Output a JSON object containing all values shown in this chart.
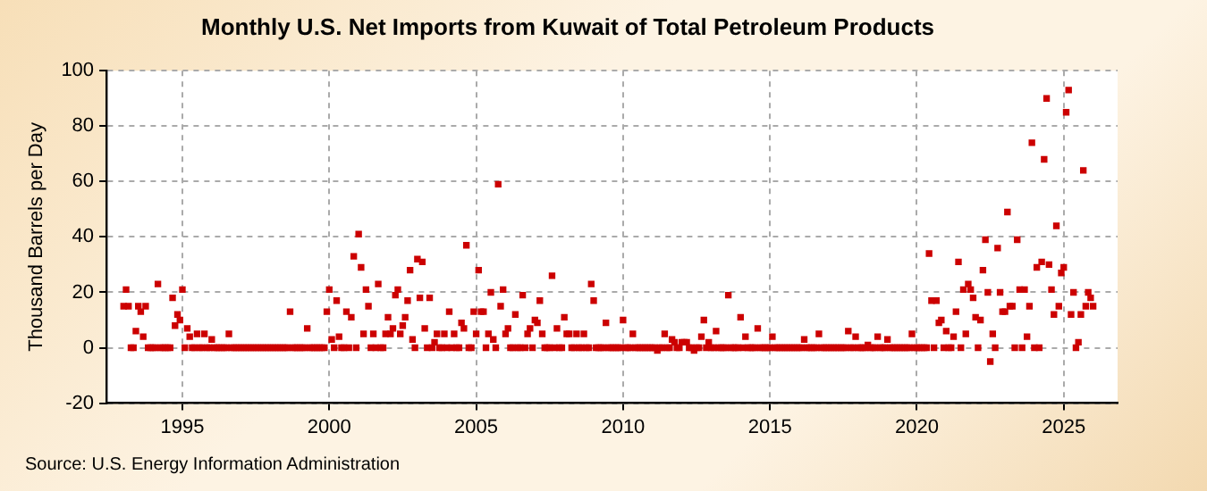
{
  "chart_data": {
    "type": "scatter",
    "title": "Monthly U.S. Net Imports from Kuwait of Total Petroleum Products",
    "ylabel": "Thousand Barrels per Day",
    "annotations": [
      "Source: U.S. Energy Information Administration"
    ],
    "xlim": [
      "1992-06",
      "2026-11"
    ],
    "xticks": [
      "1995",
      "2000",
      "2005",
      "2010",
      "2015",
      "2020",
      "2025"
    ],
    "ylim": [
      -20,
      100
    ],
    "yticks": [
      -20,
      0,
      20,
      40,
      60,
      80,
      100
    ],
    "grid": true,
    "legend": false,
    "marker": "square",
    "x": [
      "1993-01",
      "1993-02",
      "1993-03",
      "1993-04",
      "1993-05",
      "1993-06",
      "1993-07",
      "1993-08",
      "1993-09",
      "1993-10",
      "1993-11",
      "1993-12",
      "1994-01",
      "1994-02",
      "1994-03",
      "1994-04",
      "1994-05",
      "1994-06",
      "1994-07",
      "1994-08",
      "1994-09",
      "1994-10",
      "1994-11",
      "1994-12",
      "1995-01",
      "1995-02",
      "1995-03",
      "1995-04",
      "1995-05",
      "1995-06",
      "1995-07",
      "1995-08",
      "1995-09",
      "1995-10",
      "1995-11",
      "1995-12",
      "1996-01",
      "1996-02",
      "1996-03",
      "1996-04",
      "1996-05",
      "1996-06",
      "1996-07",
      "1996-08",
      "1996-09",
      "1996-10",
      "1996-11",
      "1996-12",
      "1997-01",
      "1997-02",
      "1997-03",
      "1997-04",
      "1997-05",
      "1997-06",
      "1997-07",
      "1997-08",
      "1997-09",
      "1997-10",
      "1997-11",
      "1997-12",
      "1998-01",
      "1998-02",
      "1998-03",
      "1998-04",
      "1998-05",
      "1998-06",
      "1998-07",
      "1998-08",
      "1998-09",
      "1998-10",
      "1998-11",
      "1998-12",
      "1999-01",
      "1999-02",
      "1999-03",
      "1999-04",
      "1999-05",
      "1999-06",
      "1999-07",
      "1999-08",
      "1999-09",
      "1999-10",
      "1999-11",
      "1999-12",
      "2000-01",
      "2000-02",
      "2000-03",
      "2000-04",
      "2000-05",
      "2000-06",
      "2000-07",
      "2000-08",
      "2000-09",
      "2000-10",
      "2000-11",
      "2000-12",
      "2001-01",
      "2001-02",
      "2001-03",
      "2001-04",
      "2001-05",
      "2001-06",
      "2001-07",
      "2001-08",
      "2001-09",
      "2001-10",
      "2001-11",
      "2001-12",
      "2002-01",
      "2002-02",
      "2002-03",
      "2002-04",
      "2002-05",
      "2002-06",
      "2002-07",
      "2002-08",
      "2002-09",
      "2002-10",
      "2002-11",
      "2002-12",
      "2003-01",
      "2003-02",
      "2003-03",
      "2003-04",
      "2003-05",
      "2003-06",
      "2003-07",
      "2003-08",
      "2003-09",
      "2003-10",
      "2003-11",
      "2003-12",
      "2004-01",
      "2004-02",
      "2004-03",
      "2004-04",
      "2004-05",
      "2004-06",
      "2004-07",
      "2004-08",
      "2004-09",
      "2004-10",
      "2004-11",
      "2004-12",
      "2005-01",
      "2005-02",
      "2005-03",
      "2005-04",
      "2005-05",
      "2005-06",
      "2005-07",
      "2005-08",
      "2005-09",
      "2005-10",
      "2005-11",
      "2005-12",
      "2006-01",
      "2006-02",
      "2006-03",
      "2006-04",
      "2006-05",
      "2006-06",
      "2006-07",
      "2006-08",
      "2006-09",
      "2006-10",
      "2006-11",
      "2006-12",
      "2007-01",
      "2007-02",
      "2007-03",
      "2007-04",
      "2007-05",
      "2007-06",
      "2007-07",
      "2007-08",
      "2007-09",
      "2007-10",
      "2007-11",
      "2007-12",
      "2008-01",
      "2008-02",
      "2008-03",
      "2008-04",
      "2008-05",
      "2008-06",
      "2008-07",
      "2008-08",
      "2008-09",
      "2008-10",
      "2008-11",
      "2008-12",
      "2009-01",
      "2009-02",
      "2009-03",
      "2009-04",
      "2009-05",
      "2009-06",
      "2009-07",
      "2009-08",
      "2009-09",
      "2009-10",
      "2009-11",
      "2009-12",
      "2010-01",
      "2010-02",
      "2010-03",
      "2010-04",
      "2010-05",
      "2010-06",
      "2010-07",
      "2010-08",
      "2010-09",
      "2010-10",
      "2010-11",
      "2010-12",
      "2011-01",
      "2011-02",
      "2011-03",
      "2011-04",
      "2011-05",
      "2011-06",
      "2011-07",
      "2011-08",
      "2011-09",
      "2011-10",
      "2011-11",
      "2011-12",
      "2012-01",
      "2012-02",
      "2012-03",
      "2012-04",
      "2012-05",
      "2012-06",
      "2012-07",
      "2012-08",
      "2012-09",
      "2012-10",
      "2012-11",
      "2012-12",
      "2013-01",
      "2013-02",
      "2013-03",
      "2013-04",
      "2013-05",
      "2013-06",
      "2013-07",
      "2013-08",
      "2013-09",
      "2013-10",
      "2013-11",
      "2013-12",
      "2014-01",
      "2014-02",
      "2014-03",
      "2014-04",
      "2014-05",
      "2014-06",
      "2014-07",
      "2014-08",
      "2014-09",
      "2014-10",
      "2014-11",
      "2014-12",
      "2015-01",
      "2015-02",
      "2015-03",
      "2015-04",
      "2015-05",
      "2015-06",
      "2015-07",
      "2015-08",
      "2015-09",
      "2015-10",
      "2015-11",
      "2015-12",
      "2016-01",
      "2016-02",
      "2016-03",
      "2016-04",
      "2016-05",
      "2016-06",
      "2016-07",
      "2016-08",
      "2016-09",
      "2016-10",
      "2016-11",
      "2016-12",
      "2017-01",
      "2017-02",
      "2017-03",
      "2017-04",
      "2017-05",
      "2017-06",
      "2017-07",
      "2017-08",
      "2017-09",
      "2017-10",
      "2017-11",
      "2017-12",
      "2018-01",
      "2018-02",
      "2018-03",
      "2018-04",
      "2018-05",
      "2018-06",
      "2018-07",
      "2018-08",
      "2018-09",
      "2018-10",
      "2018-11",
      "2018-12",
      "2019-01",
      "2019-02",
      "2019-03",
      "2019-04",
      "2019-05",
      "2019-06",
      "2019-07",
      "2019-08",
      "2019-09",
      "2019-10",
      "2019-11",
      "2019-12",
      "2020-01",
      "2020-02",
      "2020-03",
      "2020-04",
      "2020-05",
      "2020-06",
      "2020-07",
      "2020-08",
      "2020-09",
      "2020-10",
      "2020-11",
      "2020-12",
      "2021-01",
      "2021-02",
      "2021-03",
      "2021-04",
      "2021-05",
      "2021-06",
      "2021-07",
      "2021-08",
      "2021-09",
      "2021-10",
      "2021-11",
      "2021-12",
      "2022-01",
      "2022-02",
      "2022-03",
      "2022-04",
      "2022-05",
      "2022-06",
      "2022-07",
      "2022-08",
      "2022-09",
      "2022-10",
      "2022-11",
      "2022-12",
      "2023-01",
      "2023-02",
      "2023-03",
      "2023-04",
      "2023-05",
      "2023-06",
      "2023-07",
      "2023-08",
      "2023-09",
      "2023-10",
      "2023-11",
      "2023-12",
      "2024-01",
      "2024-02",
      "2024-03",
      "2024-04",
      "2024-05",
      "2024-06",
      "2024-07",
      "2024-08",
      "2024-09",
      "2024-10",
      "2024-11",
      "2024-12",
      "2025-01",
      "2025-02",
      "2025-03",
      "2025-04",
      "2025-05",
      "2025-06",
      "2025-07",
      "2025-08",
      "2025-09",
      "2025-10",
      "2025-11",
      "2025-12",
      "2026-01"
    ],
    "series": [
      {
        "color": "#cc0000",
        "values": [
          15,
          21,
          15,
          0,
          0,
          6,
          15,
          13,
          4,
          15,
          0,
          0,
          0,
          0,
          23,
          0,
          0,
          0,
          0,
          0,
          18,
          8,
          12,
          10,
          21,
          0,
          7,
          4,
          0,
          0,
          5,
          0,
          0,
          5,
          0,
          0,
          3,
          0,
          0,
          0,
          0,
          0,
          0,
          5,
          0,
          0,
          0,
          0,
          0,
          0,
          0,
          0,
          0,
          0,
          0,
          0,
          0,
          0,
          0,
          0,
          0,
          0,
          0,
          0,
          0,
          0,
          0,
          0,
          13,
          0,
          0,
          0,
          0,
          0,
          0,
          7,
          0,
          0,
          0,
          0,
          0,
          0,
          0,
          13,
          21,
          3,
          0,
          17,
          4,
          0,
          0,
          13,
          0,
          11,
          33,
          0,
          41,
          29,
          5,
          21,
          15,
          0,
          5,
          0,
          23,
          0,
          0,
          5,
          11,
          5,
          7,
          19,
          21,
          5,
          8,
          11,
          17,
          28,
          3,
          0,
          32,
          18,
          31,
          7,
          0,
          18,
          0,
          2,
          5,
          0,
          0,
          5,
          0,
          13,
          0,
          5,
          0,
          0,
          9,
          7,
          37,
          0,
          0,
          13,
          5,
          28,
          13,
          13,
          0,
          5,
          20,
          3,
          0,
          59,
          15,
          21,
          5,
          7,
          0,
          0,
          12,
          0,
          0,
          19,
          0,
          5,
          7,
          0,
          10,
          9,
          17,
          5,
          0,
          0,
          0,
          26,
          0,
          7,
          0,
          0,
          11,
          5,
          5,
          0,
          0,
          5,
          0,
          0,
          5,
          0,
          0,
          23,
          17,
          0,
          0,
          0,
          0,
          9,
          0,
          0,
          0,
          0,
          0,
          0,
          10,
          0,
          0,
          0,
          5,
          0,
          0,
          0,
          0,
          0,
          0,
          0,
          0,
          0,
          -1,
          0,
          0,
          5,
          0,
          0,
          3,
          2,
          0,
          0,
          2,
          2,
          2,
          0,
          0,
          -1,
          0,
          0,
          4,
          10,
          0,
          2,
          0,
          0,
          6,
          0,
          0,
          0,
          0,
          19,
          0,
          0,
          0,
          0,
          11,
          0,
          4,
          0,
          0,
          0,
          0,
          7,
          0,
          0,
          0,
          0,
          0,
          4,
          0,
          0,
          0,
          0,
          0,
          0,
          0,
          0,
          0,
          0,
          0,
          0,
          3,
          0,
          0,
          0,
          0,
          0,
          5,
          0,
          0,
          0,
          0,
          0,
          0,
          0,
          0,
          0,
          0,
          0,
          6,
          0,
          0,
          4,
          0,
          0,
          0,
          0,
          1,
          0,
          0,
          0,
          4,
          0,
          0,
          0,
          3,
          0,
          0,
          0,
          0,
          0,
          0,
          0,
          0,
          0,
          5,
          0,
          0,
          0,
          0,
          0,
          0,
          34,
          17,
          0,
          17,
          9,
          10,
          0,
          6,
          0,
          0,
          4,
          13,
          31,
          0,
          21,
          5,
          23,
          21,
          18,
          11,
          0,
          10,
          28,
          39,
          20,
          -5,
          5,
          0,
          36,
          20,
          13,
          13,
          49,
          15,
          15,
          0,
          39,
          21,
          0,
          21,
          4,
          15,
          74,
          0,
          29,
          0,
          31,
          68,
          90,
          30,
          21,
          12,
          44,
          15,
          27,
          29,
          85,
          93,
          12,
          20,
          0,
          2,
          12,
          64,
          15,
          20,
          18,
          15
        ]
      }
    ]
  }
}
